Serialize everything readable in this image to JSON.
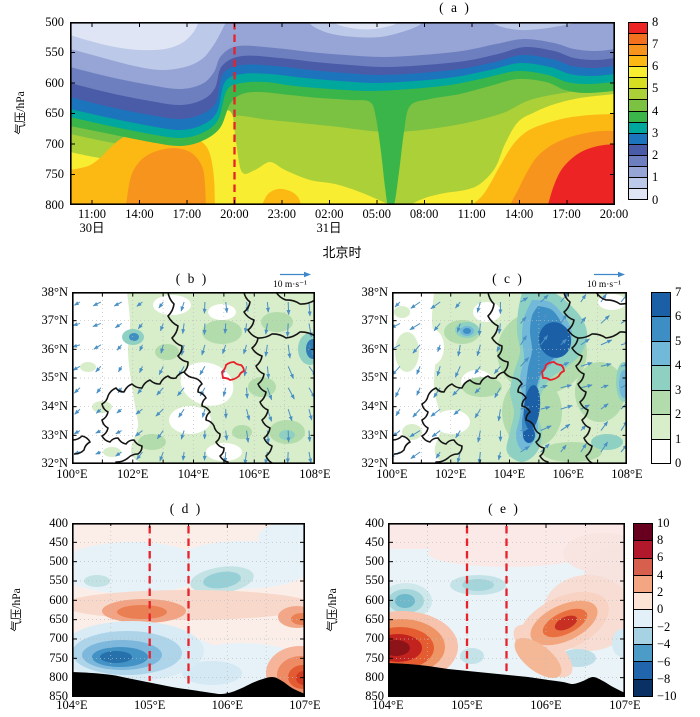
{
  "panel_a": {
    "label": "( a )",
    "ylabel": "气压/hPa",
    "y_ticks": [
      "500",
      "550",
      "600",
      "650",
      "700",
      "750",
      "800"
    ],
    "x_ticks": [
      "11:00",
      "14:00",
      "17:00",
      "20:00",
      "23:00",
      "02:00",
      "05:00",
      "08:00",
      "11:00",
      "14:00",
      "17:00",
      "20:00"
    ],
    "day_label_1": "30日",
    "day_label_2": "31日",
    "xlabel": "北京时",
    "colorbar_ticks": [
      "8",
      "7",
      "6",
      "5",
      "4",
      "3",
      "2",
      "1",
      "0"
    ],
    "colorbar_colors": [
      "#ec2424",
      "#f3701e",
      "#f7941d",
      "#fdb913",
      "#f9ed32",
      "#d7df23",
      "#acd037",
      "#7bc142",
      "#3ab54a",
      "#00a79d",
      "#1c75bc",
      "#4a5ba8",
      "#6e7fbf",
      "#96a5d5",
      "#bdc9e8",
      "#dfe5f4"
    ],
    "dashed_line_color": "#e8212a"
  },
  "panel_b": {
    "label": "( b )",
    "vector_key": "10 m·s⁻¹",
    "y_ticks": [
      "38°N",
      "37°N",
      "36°N",
      "35°N",
      "34°N",
      "33°N",
      "32°N"
    ],
    "x_ticks": [
      "100°E",
      "102°E",
      "104°E",
      "106°E",
      "108°E"
    ]
  },
  "panel_c": {
    "label": "( c )",
    "vector_key": "10 m·s⁻¹",
    "y_ticks": [
      "38°N",
      "37°N",
      "36°N",
      "35°N",
      "34°N",
      "33°N",
      "32°N"
    ],
    "x_ticks": [
      "100°E",
      "102°E",
      "104°E",
      "106°E",
      "108°E"
    ],
    "colorbar_ticks": [
      "7",
      "6",
      "5",
      "4",
      "3",
      "2",
      "1",
      "0"
    ],
    "colorbar_colors": [
      "#1b5fa6",
      "#3c8ec4",
      "#72b8d8",
      "#8ed1c2",
      "#b2dcab",
      "#d8edca",
      "#ffffff"
    ]
  },
  "panel_d": {
    "label": "( d )",
    "ylabel": "气压/hPa",
    "y_ticks": [
      "400",
      "450",
      "500",
      "550",
      "600",
      "650",
      "700",
      "750",
      "800",
      "850"
    ],
    "x_ticks": [
      "104°E",
      "105°E",
      "106°E",
      "107°E"
    ]
  },
  "panel_e": {
    "label": "( e )",
    "ylabel": "气压/hPa",
    "y_ticks": [
      "400",
      "450",
      "500",
      "550",
      "600",
      "650",
      "700",
      "750",
      "800",
      "850"
    ],
    "x_ticks": [
      "104°E",
      "105°E",
      "106°E",
      "107°E"
    ],
    "colorbar_ticks": [
      "10",
      "8",
      "6",
      "4",
      "2",
      "0",
      "−2",
      "−4",
      "−6",
      "−8",
      "−10"
    ],
    "colorbar_colors": [
      "#67001f",
      "#b2182b",
      "#d6604d",
      "#f4a582",
      "#fbe3d6",
      "#e3f0f7",
      "#a6d2e4",
      "#4d9bc7",
      "#2166ac",
      "#0a3163"
    ]
  },
  "chart_data": [
    {
      "panel": "a",
      "type": "heatmap",
      "title": "(a)",
      "xlabel": "北京时",
      "ylabel": "气压/hPa",
      "x_ticks": [
        "11:00",
        "14:00",
        "17:00",
        "20:00",
        "23:00",
        "02:00",
        "05:00",
        "08:00",
        "11:00",
        "14:00",
        "17:00",
        "20:00"
      ],
      "x_day_labels": [
        {
          "label": "30日",
          "under_tick": "11:00 (first)"
        },
        {
          "label": "31日",
          "under_tick": "02:00"
        }
      ],
      "y_ticks_hPa": [
        500,
        550,
        600,
        650,
        700,
        750,
        800
      ],
      "y_axis_inverted": true,
      "colorbar_range": [
        0,
        8
      ],
      "colorbar_tick_step": 1,
      "annotation": "red dashed vertical line at 20:00 30日",
      "pattern": "values 0–3 (blues) aloft at 500–600 hPa, deepest left of 20:00 30日; 4–5 (greens) mid layer dominating 20:00 30日–11:00 31日; 6–8 (yellow–orange–red) below ~650 hPa with orange core ~7 near 700–800 hPa 14:00–19:00 30日 and red core ~8 near 700–800 hPa 14:00–20:00 31日; green tongue ~4 reaching 800 hPa near 05:00 31日"
    },
    {
      "panel": "b",
      "type": "map_contour_quiver",
      "title": "(b)",
      "lon_range": [
        100,
        108
      ],
      "lat_range": [
        32,
        38
      ],
      "x_ticks": [
        "100°E",
        "102°E",
        "104°E",
        "106°E",
        "108°E"
      ],
      "y_ticks": [
        "38°N",
        "37°N",
        "36°N",
        "35°N",
        "34°N",
        "33°N",
        "32°N"
      ],
      "vector_key": "10 m·s⁻¹",
      "shading_range": [
        0,
        7
      ],
      "pattern": "light green shading (1–2) over most of domain east of 102°E; local maxima ~5 near 102°E,36.5°N and ~6 at 108°E,36°N; blue wind vectors mostly northerly–northeasterly; small red closed contour (study region) near 105.2°E,35.2°N; bold black province boundaries"
    },
    {
      "panel": "c",
      "type": "map_contour_quiver",
      "title": "(c)",
      "lon_range": [
        100,
        108
      ],
      "lat_range": [
        32,
        38
      ],
      "x_ticks": [
        "100°E",
        "102°E",
        "104°E",
        "106°E",
        "108°E"
      ],
      "y_ticks": [
        "38°N",
        "37°N",
        "36°N",
        "35°N",
        "34°N",
        "33°N",
        "32°N"
      ],
      "vector_key": "10 m·s⁻¹",
      "colorbar_range": [
        0,
        7
      ],
      "colorbar_tick_step": 1,
      "pattern": "strong NE–SW band of 4–7 between 104°E and 106.5°E with cores ~7 near 105.6°E,36.2°N and 104.7°E,34°N; greens 1–3 around the band; red closed contour near 105.2°E,35.2°N"
    },
    {
      "panel": "d",
      "type": "vertical_cross_section",
      "title": "(d)",
      "x_ticks": [
        "104°E",
        "105°E",
        "106°E",
        "107°E"
      ],
      "y_ticks_hPa": [
        400,
        450,
        500,
        550,
        600,
        650,
        700,
        750,
        800,
        850
      ],
      "y_axis_inverted": true,
      "shared_colorbar_with": "e",
      "annotations": "red dashed vertical lines at 105°E and 105.5°E; black terrain silhouette along bottom (~775 hPa at 104°E deepening to ~845 hPa near 106°E, secondary peak ~800 hPa at 106.5°E)",
      "pattern": "negative core ~−6 (blue) near 104.6°E,750 hPa; positive ~+4 (orange) near 105°E,600–650 hPa; positive ~+6 (red) at 107°E below 720 hPa; weak negatives ~−2 near 106°E,550 hPa"
    },
    {
      "panel": "e",
      "type": "vertical_cross_section",
      "title": "(e)",
      "x_ticks": [
        "104°E",
        "105°E",
        "106°E",
        "107°E"
      ],
      "y_ticks_hPa": [
        400,
        450,
        500,
        550,
        600,
        650,
        700,
        750,
        800,
        850
      ],
      "y_axis_inverted": true,
      "colorbar_range": [
        -10,
        10
      ],
      "colorbar_tick_step": 2,
      "annotations": "red dashed vertical lines at 105°E and 105.5°E; black terrain silhouette along bottom",
      "pattern": "strong positive core ~+8…+10 (dark red) at 104–104.5°E,700–760 hPa; positive ~+6 near 106.2°E,650 hPa; negatives ~−3 near 104.2°E,600 hPa and 105.1°E,560 hPa"
    }
  ]
}
